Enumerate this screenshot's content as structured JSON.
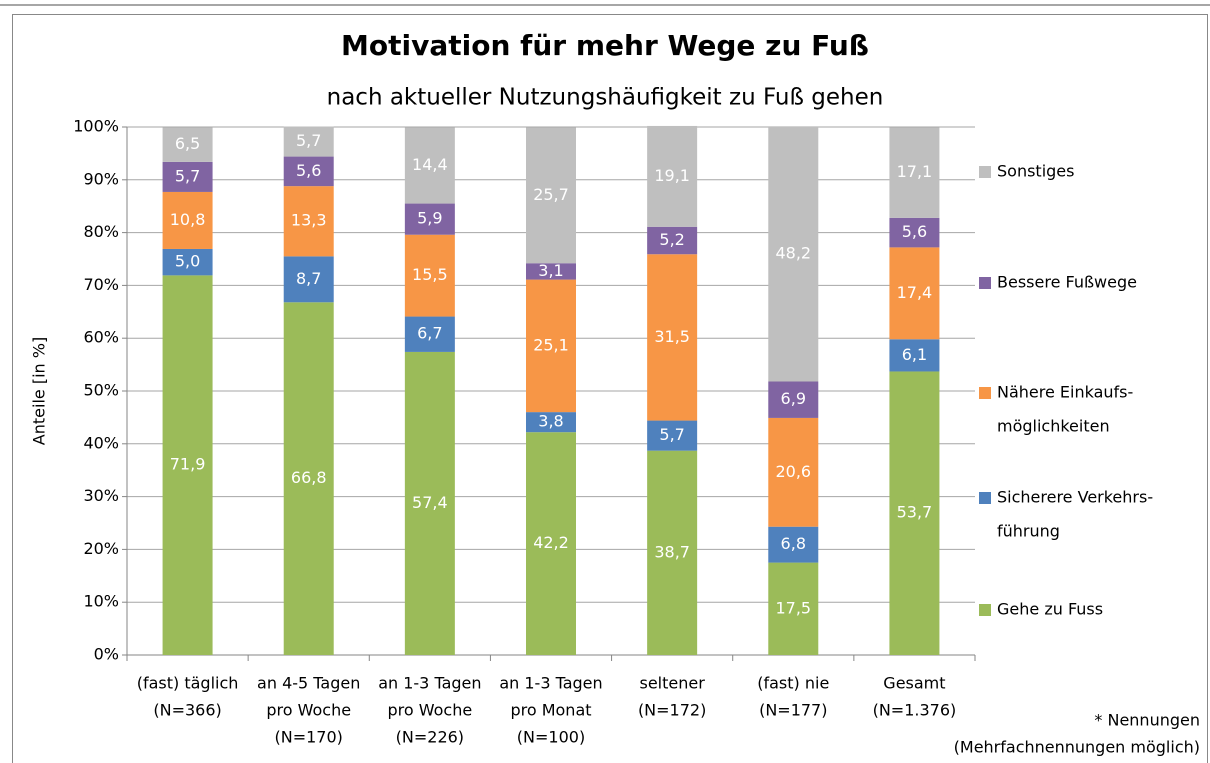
{
  "chart_data": {
    "type": "stacked_bar",
    "title": "Motivation für mehr Wege zu Fuß",
    "subtitle": "nach aktueller Nutzungshäufigkeit zu Fuß gehen",
    "y_label": "Anteile [in %]",
    "note": [
      "* Nennungen",
      "(Mehrfachnennungen möglich)"
    ],
    "categories": [
      [
        "(fast) täglich",
        "(N=366)"
      ],
      [
        "an 4-5 Tagen",
        "pro Woche",
        "(N=170)"
      ],
      [
        "an 1-3 Tagen",
        "pro Woche",
        "(N=226)"
      ],
      [
        "an 1-3 Tagen",
        "pro Monat",
        "(N=100)"
      ],
      [
        "seltener",
        "(N=172)"
      ],
      [
        "(fast) nie",
        "(N=177)"
      ],
      [
        "Gesamt",
        "(N=1.376)"
      ]
    ],
    "series": [
      {
        "name": [
          "Gehe zu Fuss"
        ],
        "color": "#9bbb59",
        "values": [
          71.9,
          66.8,
          57.4,
          42.2,
          38.7,
          17.5,
          53.7
        ],
        "value_labels": [
          "71,9",
          "66,8",
          "57,4",
          "42,2",
          "38,7",
          "17,5",
          "53,7"
        ]
      },
      {
        "name": [
          "Sicherere Verkehrs-",
          "führung"
        ],
        "color": "#4f81bd",
        "values": [
          5.0,
          8.7,
          6.7,
          3.8,
          5.7,
          6.8,
          6.1
        ],
        "value_labels": [
          "5,0",
          "8,7",
          "6,7",
          "3,8",
          "5,7",
          "6,8",
          "6,1"
        ]
      },
      {
        "name": [
          "Nähere Einkaufs-",
          "möglichkeiten"
        ],
        "color": "#f79646",
        "values": [
          10.8,
          13.3,
          15.5,
          25.1,
          31.5,
          20.6,
          17.4
        ],
        "value_labels": [
          "10,8",
          "13,3",
          "15,5",
          "25,1",
          "31,5",
          "20,6",
          "17,4"
        ]
      },
      {
        "name": [
          "Bessere Fußwege"
        ],
        "color": "#8064a2",
        "values": [
          5.7,
          5.6,
          5.9,
          3.1,
          5.2,
          6.9,
          5.6
        ],
        "value_labels": [
          "5,7",
          "5,6",
          "5,9",
          "3,1",
          "5,2",
          "6,9",
          "5,6"
        ]
      },
      {
        "name": [
          "Sonstiges"
        ],
        "color": "#bfbfbf",
        "values": [
          6.5,
          5.7,
          14.4,
          25.7,
          19.1,
          48.2,
          17.1
        ],
        "value_labels": [
          "6,5",
          "5,7",
          "14,4",
          "25,7",
          "19,1",
          "48,2",
          "17,1"
        ]
      }
    ],
    "ylim": [
      0,
      100
    ],
    "yticks": [
      {
        "value": 0,
        "label": "0%"
      },
      {
        "value": 10,
        "label": "10%"
      },
      {
        "value": 20,
        "label": "20%"
      },
      {
        "value": 30,
        "label": "30%"
      },
      {
        "value": 40,
        "label": "40%"
      },
      {
        "value": 50,
        "label": "50%"
      },
      {
        "value": 60,
        "label": "60%"
      },
      {
        "value": 70,
        "label": "70%"
      },
      {
        "value": 80,
        "label": "80%"
      },
      {
        "value": 90,
        "label": "90%"
      },
      {
        "value": 100,
        "label": "100%"
      }
    ],
    "grid": true,
    "legend": "right"
  }
}
